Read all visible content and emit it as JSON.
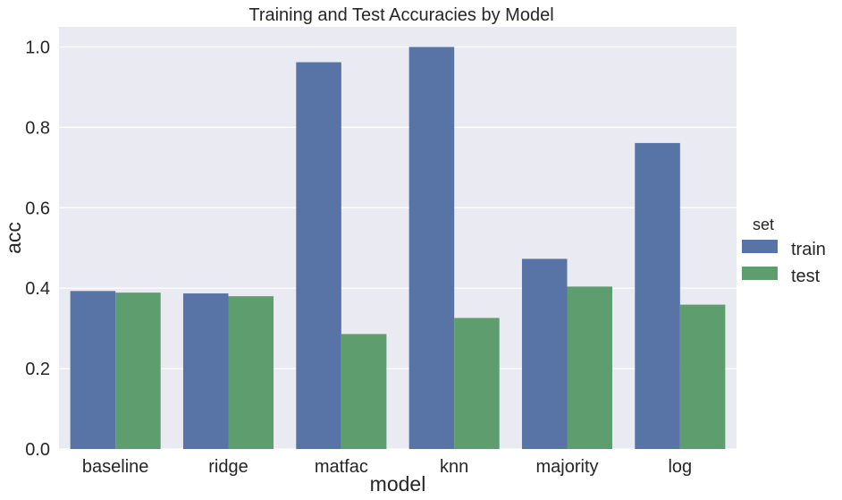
{
  "chart_data": {
    "type": "bar",
    "title": "Training and Test Accuracies by Model",
    "xlabel": "model",
    "ylabel": "acc",
    "categories": [
      "baseline",
      "ridge",
      "matfac",
      "knn",
      "majority",
      "log"
    ],
    "series": [
      {
        "name": "train",
        "values": [
          0.393,
          0.387,
          0.962,
          1.0,
          0.473,
          0.761
        ]
      },
      {
        "name": "test",
        "values": [
          0.389,
          0.38,
          0.286,
          0.326,
          0.404,
          0.359
        ]
      }
    ],
    "ylim": [
      0,
      1.05
    ],
    "yticks": [
      "0.0",
      "0.2",
      "0.4",
      "0.6",
      "0.8",
      "1.0"
    ],
    "grid": true,
    "legend": {
      "title": "set",
      "placement": "right"
    },
    "colors": {
      "train": "#5874a6",
      "test": "#5d9d6e",
      "plot_background": "#eaeaf2",
      "grid": "#ffffff"
    }
  }
}
